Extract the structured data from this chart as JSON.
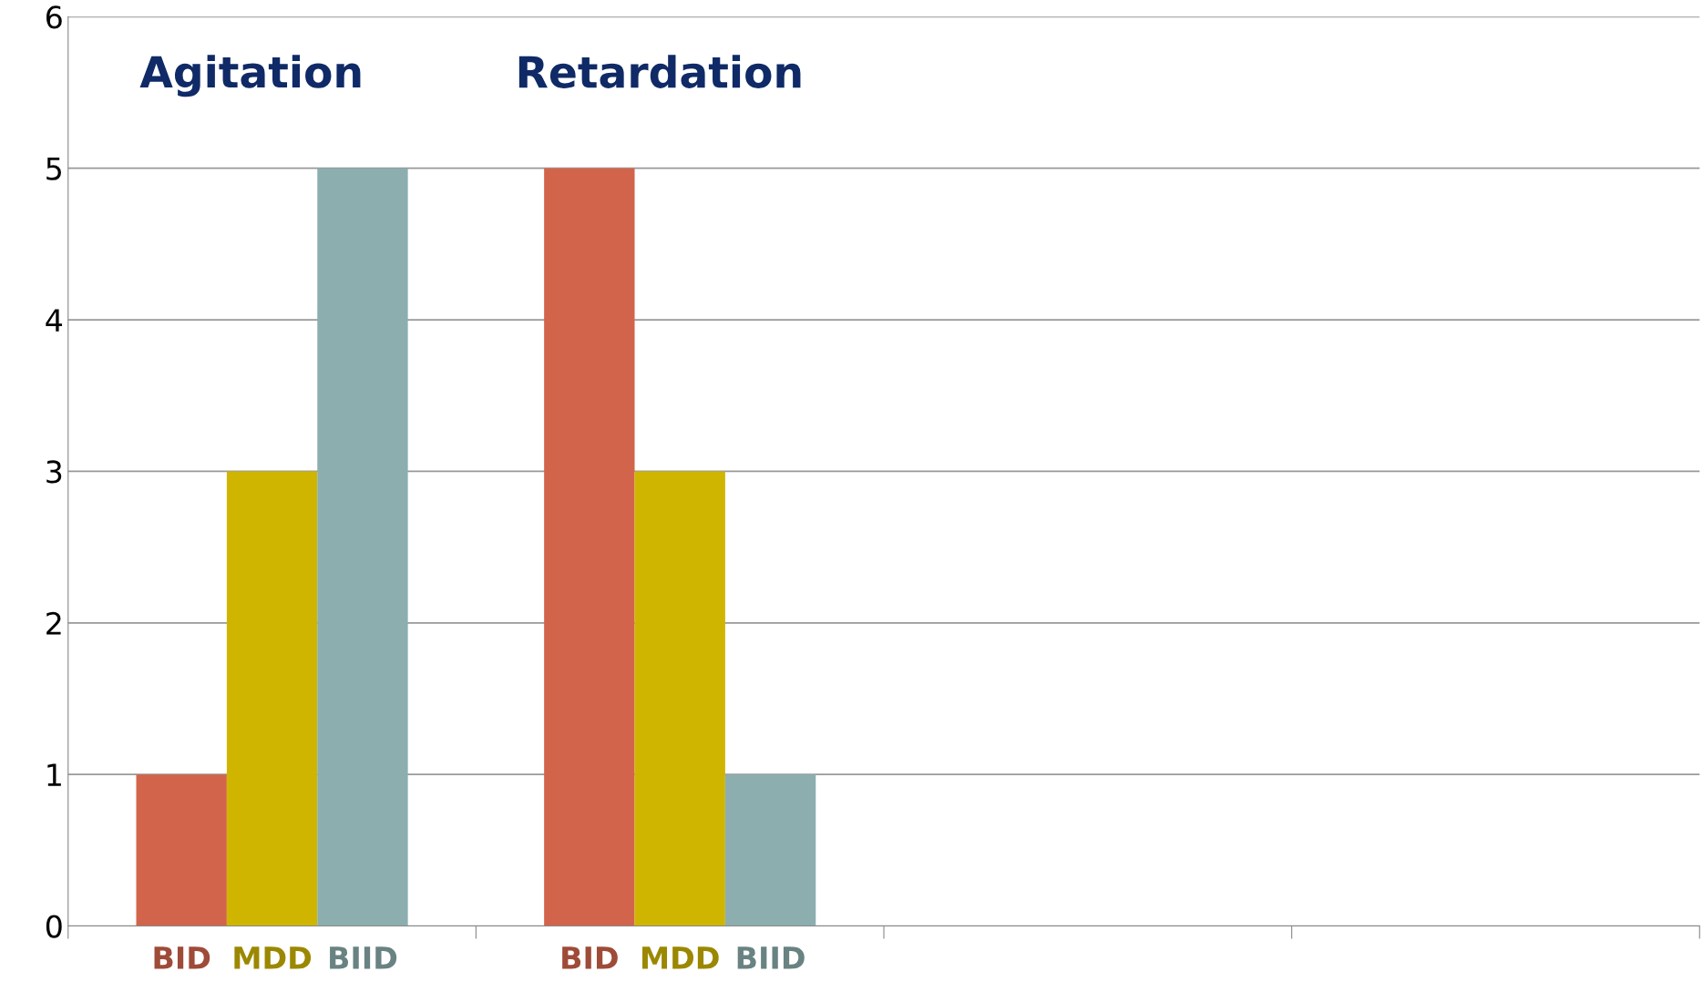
{
  "chart_data": {
    "type": "bar",
    "categories": [
      "Agitation",
      "Retardation",
      null,
      null
    ],
    "series": [
      {
        "name": "BID",
        "color": "#d2644b",
        "values": [
          1,
          5,
          null,
          null
        ]
      },
      {
        "name": "MDD",
        "color": "#cfb500",
        "values": [
          3,
          3,
          null,
          null
        ]
      },
      {
        "name": "BIID",
        "color": "#8caeae",
        "values": [
          5,
          1,
          null,
          null
        ]
      }
    ],
    "ylim": [
      0,
      6
    ],
    "yticks": [
      0,
      1,
      2,
      3,
      4,
      5,
      6
    ],
    "grid": "y",
    "legend": false
  }
}
